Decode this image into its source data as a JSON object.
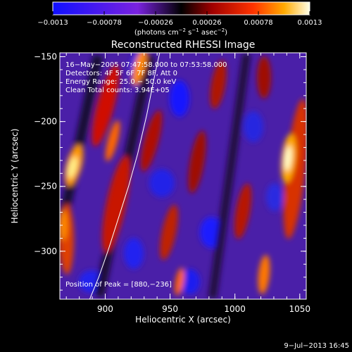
{
  "chart_data": {
    "type": "heatmap",
    "title": "Reconstructed RHESSI Image",
    "xlabel": "Heliocentric X (arcsec)",
    "ylabel": "Heliocentric Y (arcsec)",
    "xlim": [
      865,
      1055
    ],
    "ylim": [
      -337,
      -147
    ],
    "x_ticks": [
      900,
      950,
      1000,
      1050
    ],
    "y_ticks": [
      -300,
      -250,
      -200,
      -150
    ],
    "x_tick_labels": [
      "900",
      "950",
      "1000",
      "1050"
    ],
    "y_tick_labels": [
      "−300",
      "−250",
      "−200",
      "−150"
    ],
    "colorbar": {
      "range": [
        -0.0013,
        0.0013
      ],
      "tick_labels": [
        "−0.0013",
        "−0.00078",
        "−0.00026",
        "0.00026",
        "0.00078",
        "0.0013"
      ],
      "unit_label": "(photons cm",
      "unit_exp1": "−2",
      "unit_mid": " s",
      "unit_exp2": "−1",
      "unit_end": " asec",
      "unit_exp3": "−2",
      "unit_close": ")"
    },
    "annotations": [
      "16−May−2005 07:47:58.000 to 07:53:58.000",
      "Detectors: 4F 5F 6F 7F 8F, Att 0",
      "Energy Range: 25.0 − 50.0 keV",
      "Clean     Total counts: 3.94E+05"
    ],
    "peak_label": "Position of Peak = [880,−236]",
    "limb_curve": [
      [
        888,
        -337
      ],
      [
        895,
        -320
      ],
      [
        902,
        -300
      ],
      [
        910,
        -275
      ],
      [
        918,
        -250
      ],
      [
        925,
        -225
      ],
      [
        932,
        -195
      ],
      [
        938,
        -165
      ],
      [
        942,
        -147
      ]
    ],
    "grid": false
  },
  "footer": {
    "date": "9−Jul−2013 16:45"
  }
}
